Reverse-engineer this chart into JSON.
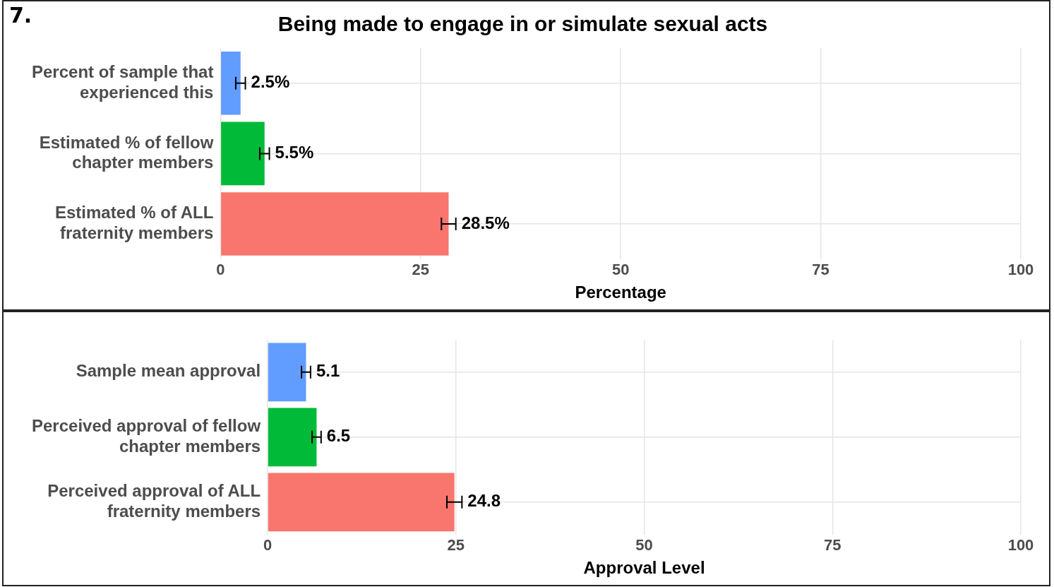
{
  "chart_data": [
    {
      "type": "bar",
      "orientation": "horizontal",
      "title": "Being made to engage in or simulate sexual acts",
      "annotations": [
        "7."
      ],
      "xlabel": "Percentage",
      "categories": [
        "Percent of sample that experienced this",
        "Estimated % of fellow chapter members",
        "Estimated % of ALL fraternity members"
      ],
      "values": [
        2.5,
        5.5,
        28.5
      ],
      "colors": [
        "#619cff",
        "#00ba38",
        "#f8766d"
      ],
      "errors": [
        0.6,
        0.6,
        0.9
      ],
      "value_labels": [
        "2.5%",
        "5.5%",
        "28.5%"
      ],
      "xlim": [
        0,
        100
      ],
      "xticks": [
        0,
        25,
        50,
        75,
        100
      ],
      "grid": true,
      "legend": false
    },
    {
      "type": "bar",
      "orientation": "horizontal",
      "xlabel": "Approval Level",
      "categories": [
        "Sample mean approval",
        "Perceived approval of fellow chapter members",
        "Perceived approval of ALL fraternity members"
      ],
      "values": [
        5.1,
        6.5,
        24.8
      ],
      "colors": [
        "#619cff",
        "#00ba38",
        "#f8766d"
      ],
      "errors": [
        0.6,
        0.6,
        1.0
      ],
      "data_labels": true,
      "xlim": [
        0,
        100
      ],
      "xticks": [
        0,
        25,
        50,
        75,
        100
      ],
      "grid": true,
      "legend": false
    }
  ]
}
